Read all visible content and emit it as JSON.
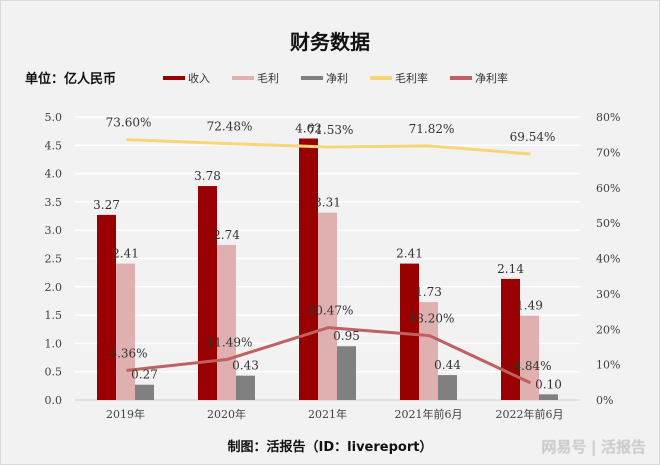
{
  "title": "财务数据",
  "unit_label": "单位：亿人民币",
  "footer": "制图：活报告（ID：livereport）",
  "watermark": "网易号 | 活报告",
  "colors": {
    "revenue": "#990000",
    "gross_profit": "#e0b0b0",
    "net_profit": "#808080",
    "gross_margin": "#f8d676",
    "net_margin": "#c06060",
    "grid": "#ffffff",
    "text": "#404040"
  },
  "chart_data": {
    "type": "bar",
    "title": "财务数据",
    "categories": [
      "2019年",
      "2020年",
      "2021年",
      "2021年前6月",
      "2022年前6月"
    ],
    "series": [
      {
        "name": "收入",
        "type": "bar",
        "axis": "left",
        "values": [
          3.27,
          3.78,
          4.62,
          2.41,
          2.14
        ],
        "labels": [
          "3.27",
          "3.78",
          "4.62",
          "2.41",
          "2.14"
        ]
      },
      {
        "name": "毛利",
        "type": "bar",
        "axis": "left",
        "values": [
          2.41,
          2.74,
          3.31,
          1.73,
          1.49
        ],
        "labels": [
          "2.41",
          "2.74",
          "3.31",
          "1.73",
          "1.49"
        ]
      },
      {
        "name": "净利",
        "type": "bar",
        "axis": "left",
        "values": [
          0.27,
          0.43,
          0.95,
          0.44,
          0.1
        ],
        "labels": [
          "0.27",
          "0.43",
          "0.95",
          "0.44",
          "0.10"
        ]
      },
      {
        "name": "毛利率",
        "type": "line",
        "axis": "right",
        "values": [
          73.6,
          72.48,
          71.53,
          71.82,
          69.54
        ],
        "labels": [
          "73.60%",
          "72.48%",
          "71.53%",
          "71.82%",
          "69.54%"
        ]
      },
      {
        "name": "净利率",
        "type": "line",
        "axis": "right",
        "values": [
          8.36,
          11.49,
          20.47,
          18.2,
          4.84
        ],
        "labels": [
          "8.36%",
          "11.49%",
          "20.47%",
          "18.20%",
          "4.84%"
        ]
      }
    ],
    "left_axis": {
      "ylim": [
        0,
        5.0
      ],
      "ticks": [
        "0.0",
        "0.5",
        "1.0",
        "1.5",
        "2.0",
        "2.5",
        "3.0",
        "3.5",
        "4.0",
        "4.5",
        "5.0"
      ]
    },
    "right_axis": {
      "ylim": [
        0,
        80
      ],
      "ticks": [
        "0%",
        "10%",
        "20%",
        "30%",
        "40%",
        "50%",
        "60%",
        "70%",
        "80%"
      ]
    },
    "grid": true,
    "legend_position": "top"
  }
}
